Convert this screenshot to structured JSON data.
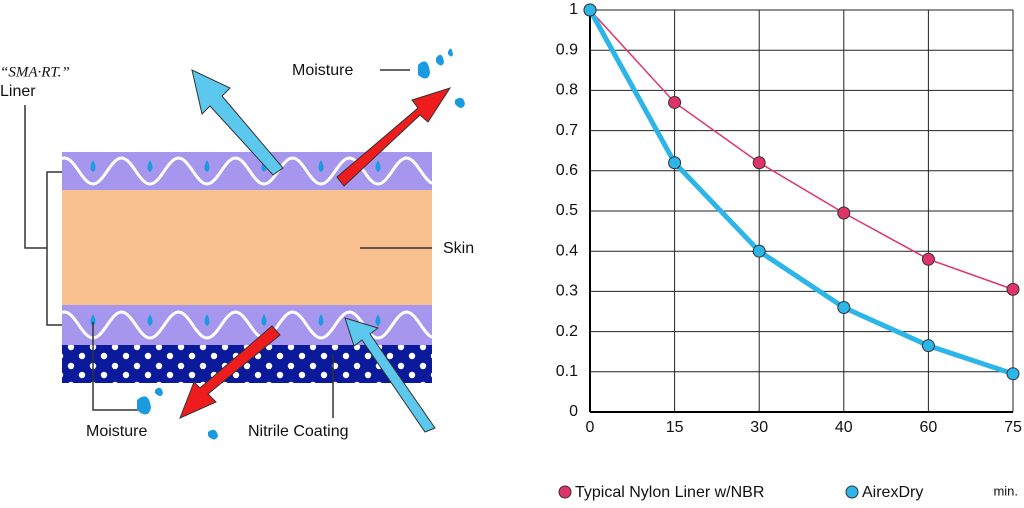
{
  "diagram": {
    "liner_label": [
      "“SMA·RT.”",
      "Liner"
    ],
    "moisture_top": "Moisture",
    "skin": "Skin",
    "moisture_bottom": "Moisture",
    "nitrile": "Nitrile Coating"
  },
  "chart_data": {
    "type": "line",
    "categories": [
      "0",
      "15",
      "30",
      "40",
      "60",
      "75"
    ],
    "x_label": "min.",
    "ylim": [
      0,
      1
    ],
    "yticks": [
      0,
      0.1,
      0.2,
      0.3,
      0.4,
      0.5,
      0.6,
      0.7,
      0.8,
      0.9,
      1
    ],
    "grid": true,
    "series": [
      {
        "name": "Typical Nylon Liner w/NBR",
        "color": "#e0336a",
        "values": [
          1,
          0.77,
          0.62,
          0.495,
          0.38,
          0.305
        ]
      },
      {
        "name": "AirexDry",
        "color": "#2bb5e8",
        "values": [
          1,
          0.62,
          0.4,
          0.26,
          0.165,
          0.095
        ]
      }
    ]
  }
}
